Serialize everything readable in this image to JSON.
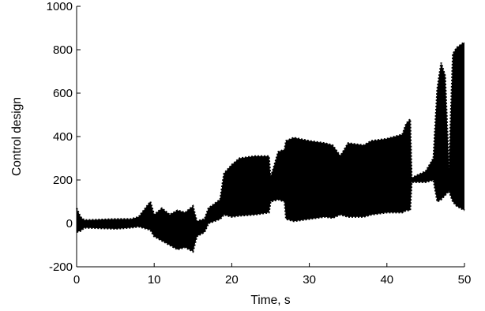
{
  "chart_data": {
    "type": "line",
    "xlabel": "Time, s",
    "ylabel": "Control design",
    "xlim": [
      0,
      50
    ],
    "ylim": [
      -200,
      1000
    ],
    "xticks": [
      0,
      10,
      20,
      30,
      40,
      50
    ],
    "yticks": [
      -200,
      0,
      200,
      400,
      600,
      800,
      1000
    ],
    "grid": false,
    "line_style": "dashed",
    "color": "#000000",
    "series": [
      {
        "envelope": [
          {
            "x": 0,
            "lo": -40,
            "hi": 70
          },
          {
            "x": 0.5,
            "lo": -35,
            "hi": 30
          },
          {
            "x": 1,
            "lo": -20,
            "hi": 15
          },
          {
            "x": 5,
            "lo": -25,
            "hi": 20
          },
          {
            "x": 7,
            "lo": -20,
            "hi": 20
          },
          {
            "x": 8,
            "lo": -15,
            "hi": 30
          },
          {
            "x": 9.5,
            "lo": -30,
            "hi": 100
          },
          {
            "x": 10,
            "lo": -60,
            "hi": 40
          },
          {
            "x": 11,
            "lo": -80,
            "hi": 70
          },
          {
            "x": 12,
            "lo": -100,
            "hi": 40
          },
          {
            "x": 13,
            "lo": -120,
            "hi": 60
          },
          {
            "x": 14,
            "lo": -110,
            "hi": 50
          },
          {
            "x": 15,
            "lo": -130,
            "hi": 80
          },
          {
            "x": 15.5,
            "lo": -60,
            "hi": 10
          },
          {
            "x": 16.5,
            "lo": -40,
            "hi": 20
          },
          {
            "x": 17,
            "lo": 0,
            "hi": 70
          },
          {
            "x": 18.5,
            "lo": 20,
            "hi": 110
          },
          {
            "x": 19,
            "lo": 40,
            "hi": 230
          },
          {
            "x": 20,
            "lo": 30,
            "hi": 270
          },
          {
            "x": 21,
            "lo": 35,
            "hi": 300
          },
          {
            "x": 23,
            "lo": 40,
            "hi": 310
          },
          {
            "x": 24.8,
            "lo": 50,
            "hi": 310
          },
          {
            "x": 25,
            "lo": 100,
            "hi": 210
          },
          {
            "x": 26,
            "lo": 110,
            "hi": 330
          },
          {
            "x": 26.8,
            "lo": 100,
            "hi": 340
          },
          {
            "x": 27,
            "lo": 20,
            "hi": 380
          },
          {
            "x": 28,
            "lo": 10,
            "hi": 395
          },
          {
            "x": 30,
            "lo": 20,
            "hi": 380
          },
          {
            "x": 32,
            "lo": 30,
            "hi": 370
          },
          {
            "x": 33,
            "lo": 25,
            "hi": 360
          },
          {
            "x": 34,
            "lo": 40,
            "hi": 310
          },
          {
            "x": 35,
            "lo": 30,
            "hi": 370
          },
          {
            "x": 37,
            "lo": 30,
            "hi": 360
          },
          {
            "x": 38,
            "lo": 40,
            "hi": 380
          },
          {
            "x": 40,
            "lo": 50,
            "hi": 390
          },
          {
            "x": 42,
            "lo": 50,
            "hi": 410
          },
          {
            "x": 42.5,
            "lo": 60,
            "hi": 460
          },
          {
            "x": 43,
            "lo": 60,
            "hi": 480
          },
          {
            "x": 43.2,
            "lo": 190,
            "hi": 210
          },
          {
            "x": 45,
            "lo": 190,
            "hi": 240
          },
          {
            "x": 46,
            "lo": 200,
            "hi": 300
          },
          {
            "x": 46.5,
            "lo": 100,
            "hi": 620
          },
          {
            "x": 47,
            "lo": 110,
            "hi": 740
          },
          {
            "x": 47.5,
            "lo": 130,
            "hi": 680
          },
          {
            "x": 48,
            "lo": 150,
            "hi": 250
          },
          {
            "x": 48.5,
            "lo": 100,
            "hi": 780
          },
          {
            "x": 49,
            "lo": 80,
            "hi": 810
          },
          {
            "x": 50,
            "lo": 60,
            "hi": 835
          }
        ]
      }
    ]
  }
}
